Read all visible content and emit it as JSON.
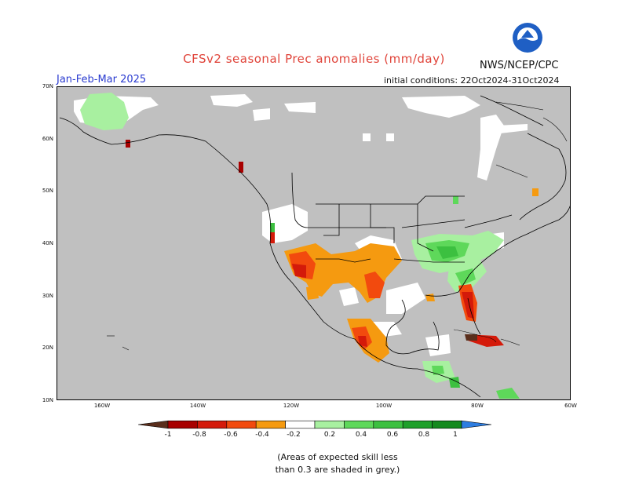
{
  "title": "CFSv2 seasonal Prec anomalies (mm/day)",
  "agency": "NWS/NCEP/CPC",
  "logo_text": "NOAA",
  "period": "Jan-Feb-Mar 2025",
  "initial_conditions": "initial conditions: 22Oct2024-31Oct2024",
  "lat_labels": [
    "70N",
    "60N",
    "50N",
    "40N",
    "30N",
    "20N",
    "10N"
  ],
  "lon_labels": [
    "160W",
    "140W",
    "120W",
    "100W",
    "80W",
    "60W"
  ],
  "legend": {
    "colors": [
      "#5a2e1c",
      "#a80000",
      "#d41a0a",
      "#f24a0e",
      "#f59a10",
      "#ffffff",
      "#a8f0a0",
      "#5ed85a",
      "#3cc040",
      "#1ea02a",
      "#148a1e",
      "#2e7de0"
    ],
    "ticks": [
      "-1",
      "-0.8",
      "-0.6",
      "-0.4",
      "-0.2",
      "0.2",
      "0.4",
      "0.6",
      "0.8",
      "1"
    ]
  },
  "note": {
    "line1": "(Areas of expected skill less",
    "line2": "than 0.3 are shaded in grey.)"
  },
  "colors": {
    "grey": "#c0c0c0",
    "title": "#e0443a",
    "period": "#2a3bd0"
  }
}
